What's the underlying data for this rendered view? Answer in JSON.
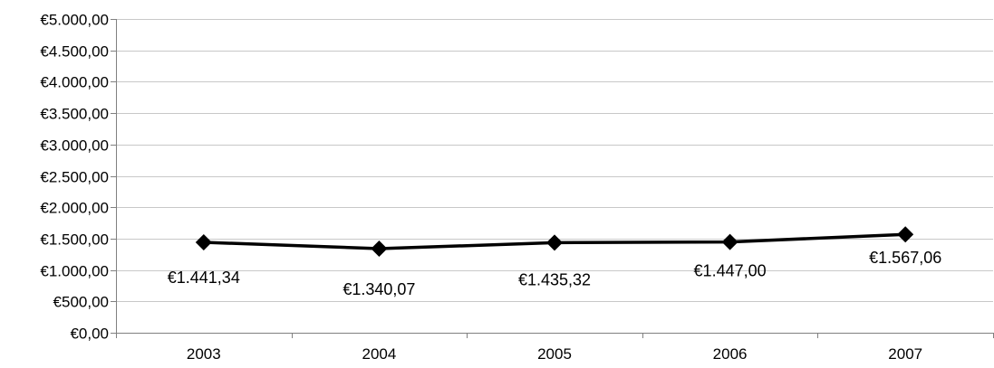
{
  "chart_data": {
    "type": "line",
    "title": "",
    "xlabel": "",
    "ylabel": "",
    "categories": [
      "2003",
      "2004",
      "2005",
      "2006",
      "2007"
    ],
    "series": [
      {
        "values": [
          1441.34,
          1340.07,
          1435.32,
          1447.0,
          1567.06
        ],
        "data_labels": [
          "€1.441,34",
          "€1.340,07",
          "€1.435,32",
          "€1.447,00",
          "€1.567,06"
        ],
        "color": "#000000",
        "marker": "diamond"
      }
    ],
    "ylim": [
      0,
      5000
    ],
    "yticks": [
      0,
      500,
      1000,
      1500,
      2000,
      2500,
      3000,
      3500,
      4000,
      4500,
      5000
    ],
    "ytick_labels": [
      "€0,00",
      "€500,00",
      "€1.000,00",
      "€1.500,00",
      "€2.000,00",
      "€2.500,00",
      "€3.000,00",
      "€3.500,00",
      "€4.000,00",
      "€4.500,00",
      "€5.000,00"
    ],
    "grid": "horizontal",
    "legend": "none"
  }
}
